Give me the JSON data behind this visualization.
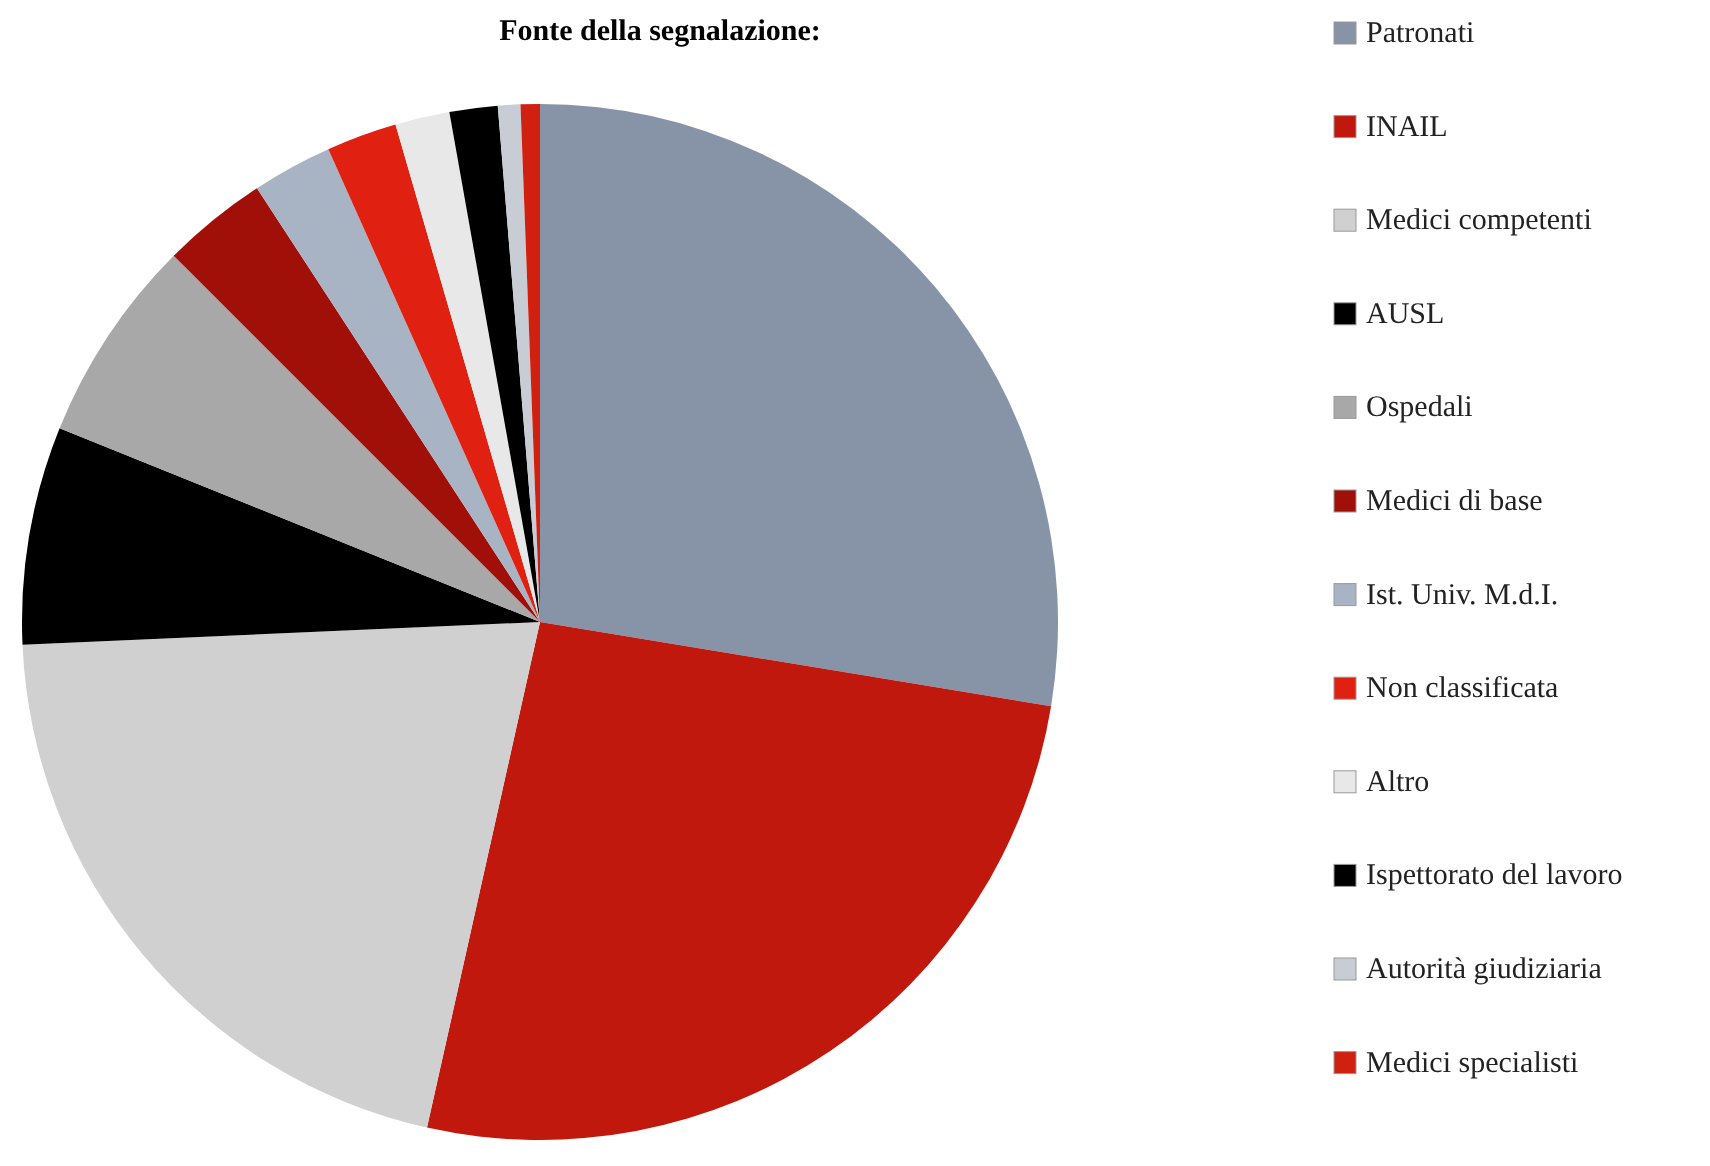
{
  "chart_data": {
    "type": "pie",
    "title": "Fonte della segnalazione:",
    "categories": [
      "Patronati",
      "INAIL",
      "Medici competenti",
      "AUSL",
      "Ospedali",
      "Medici di base",
      "Ist. Univ. M.d.I.",
      "Non classificata",
      "Altro",
      "Ispettorato del lavoro",
      "Autorità giudiziaria",
      "Medici specialisti"
    ],
    "values": [
      27.6,
      25.9,
      20.8,
      6.8,
      6.4,
      3.3,
      2.5,
      2.2,
      1.7,
      1.5,
      0.7,
      0.6
    ],
    "colors": [
      "#8794a8",
      "#c0180c",
      "#d0d0d0",
      "#000000",
      "#a8a8a8",
      "#a01008",
      "#a8b4c4",
      "#e02010",
      "#e8e8e8",
      "#000000",
      "#c8ccd4",
      "#d02010"
    ],
    "legend": "right"
  }
}
